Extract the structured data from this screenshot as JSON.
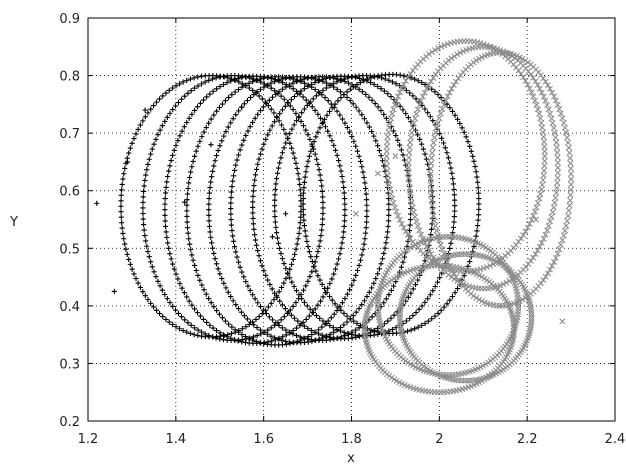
{
  "chart_data": {
    "type": "scatter",
    "title": "",
    "xlabel": "x",
    "ylabel": "Y",
    "xlim": [
      1.2,
      2.4
    ],
    "ylim": [
      0.2,
      0.9
    ],
    "grid": true,
    "grid_style": "dotted",
    "xticks": [
      1.2,
      1.4,
      1.6,
      1.8,
      2.0,
      2.2,
      2.4
    ],
    "xtick_labels": [
      "1.2",
      "1.4",
      "1.6",
      "1.8",
      "2",
      "2.2",
      "2.4"
    ],
    "yticks": [
      0.2,
      0.3,
      0.4,
      0.5,
      0.6,
      0.7,
      0.8,
      0.9
    ],
    "ytick_labels": [
      "0.2",
      "0.3",
      "0.4",
      "0.5",
      "0.6",
      "0.7",
      "0.8",
      "0.9"
    ],
    "series": [
      {
        "marker": "+",
        "color": "#000000",
        "rings": [
          {
            "cx": 1.48,
            "cy": 0.573,
            "rx": 0.205,
            "ry": 0.227
          },
          {
            "cx": 1.53,
            "cy": 0.57,
            "rx": 0.205,
            "ry": 0.23
          },
          {
            "cx": 1.58,
            "cy": 0.567,
            "rx": 0.205,
            "ry": 0.232
          },
          {
            "cx": 1.63,
            "cy": 0.565,
            "rx": 0.205,
            "ry": 0.233
          },
          {
            "cx": 1.68,
            "cy": 0.567,
            "rx": 0.205,
            "ry": 0.231
          },
          {
            "cx": 1.73,
            "cy": 0.569,
            "rx": 0.205,
            "ry": 0.229
          },
          {
            "cx": 1.78,
            "cy": 0.571,
            "rx": 0.205,
            "ry": 0.228
          },
          {
            "cx": 1.83,
            "cy": 0.574,
            "rx": 0.205,
            "ry": 0.226
          },
          {
            "cx": 1.89,
            "cy": 0.577,
            "rx": 0.2,
            "ry": 0.225
          }
        ],
        "scatter_points": [
          [
            1.22,
            0.578
          ],
          [
            1.26,
            0.425
          ],
          [
            1.29,
            0.65
          ],
          [
            1.33,
            0.74
          ],
          [
            1.55,
            0.745
          ],
          [
            1.42,
            0.58
          ],
          [
            1.48,
            0.68
          ],
          [
            1.62,
            0.52
          ],
          [
            1.65,
            0.56
          ]
        ]
      },
      {
        "marker": "x",
        "color": "#8c8c8c",
        "rings": [
          {
            "cx": 2.06,
            "cy": 0.66,
            "rx": 0.18,
            "ry": 0.2
          },
          {
            "cx": 2.1,
            "cy": 0.64,
            "rx": 0.17,
            "ry": 0.21
          },
          {
            "cx": 2.14,
            "cy": 0.62,
            "rx": 0.16,
            "ry": 0.22
          },
          {
            "cx": 2.02,
            "cy": 0.4,
            "rx": 0.16,
            "ry": 0.12
          },
          {
            "cx": 2.06,
            "cy": 0.38,
            "rx": 0.15,
            "ry": 0.11
          },
          {
            "cx": 2.0,
            "cy": 0.36,
            "rx": 0.17,
            "ry": 0.11
          }
        ],
        "scatter_points": [
          [
            2.28,
            0.373
          ],
          [
            1.81,
            0.56
          ],
          [
            1.86,
            0.63
          ],
          [
            1.9,
            0.66
          ],
          [
            2.22,
            0.55
          ]
        ]
      }
    ]
  }
}
